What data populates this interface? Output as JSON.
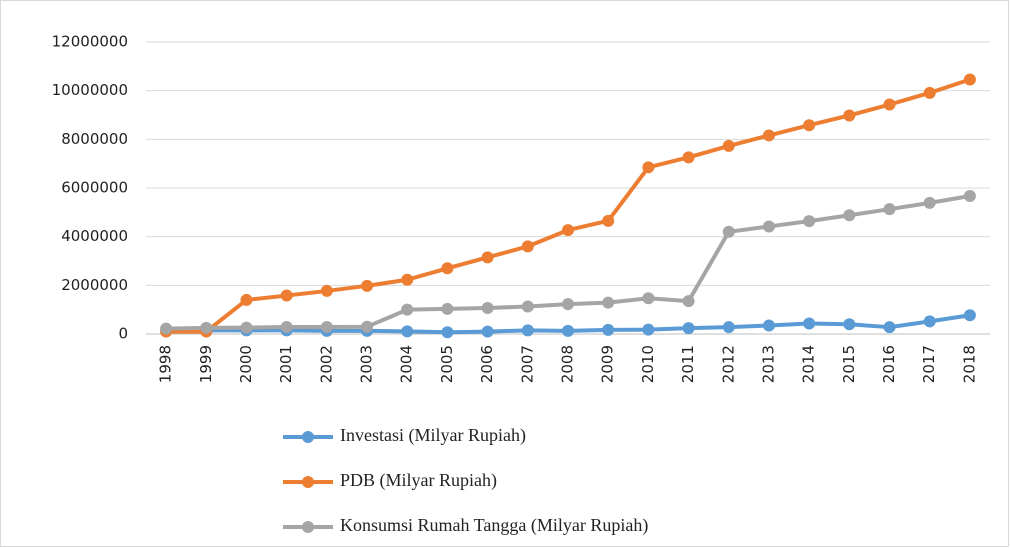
{
  "chart_data": {
    "type": "line",
    "categories": [
      "1998",
      "1999",
      "2000",
      "2001",
      "2002",
      "2003",
      "2004",
      "2005",
      "2006",
      "2007",
      "2008",
      "2009",
      "2010",
      "2011",
      "2012",
      "2013",
      "2014",
      "2015",
      "2016",
      "2017",
      "2018"
    ],
    "series": [
      {
        "name": "Investasi (Milyar Rupiah)",
        "color": "#5b9bd5",
        "values": [
          150000,
          150000,
          150000,
          150000,
          130000,
          130000,
          110000,
          70000,
          100000,
          150000,
          130000,
          170000,
          180000,
          240000,
          280000,
          350000,
          430000,
          400000,
          280000,
          520000,
          770000
        ]
      },
      {
        "name": "PDB (Milyar Rupiah)",
        "color": "#ed7d31",
        "values": [
          100000,
          100000,
          1400000,
          1580000,
          1770000,
          1980000,
          2230000,
          2700000,
          3150000,
          3600000,
          4270000,
          4650000,
          6850000,
          7260000,
          7730000,
          8160000,
          8580000,
          8980000,
          9430000,
          9910000,
          10460000
        ]
      },
      {
        "name": "Konsumsi Rumah Tangga (Milyar Rupiah)",
        "color": "#a5a5a5",
        "values": [
          220000,
          250000,
          260000,
          290000,
          290000,
          300000,
          1000000,
          1030000,
          1070000,
          1130000,
          1230000,
          1290000,
          1470000,
          1350000,
          4200000,
          4420000,
          4640000,
          4880000,
          5130000,
          5390000,
          5670000
        ]
      }
    ],
    "ylim": [
      0,
      12000000
    ],
    "yticks": [
      0,
      2000000,
      4000000,
      6000000,
      8000000,
      10000000,
      12000000
    ],
    "grid": true,
    "legend": "bottom"
  }
}
